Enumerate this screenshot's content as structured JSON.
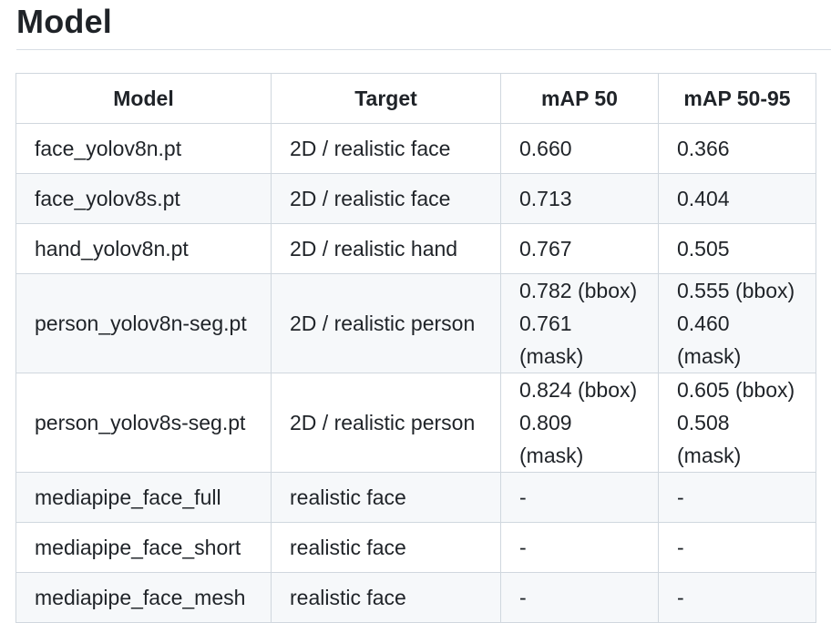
{
  "heading": "Model",
  "table": {
    "headers": [
      "Model",
      "Target",
      "mAP 50",
      "mAP 50-95"
    ],
    "rows": [
      {
        "model": "face_yolov8n.pt",
        "target": "2D / realistic face",
        "map50": [
          "0.660"
        ],
        "map5095": [
          "0.366"
        ]
      },
      {
        "model": "face_yolov8s.pt",
        "target": "2D / realistic face",
        "map50": [
          "0.713"
        ],
        "map5095": [
          "0.404"
        ]
      },
      {
        "model": "hand_yolov8n.pt",
        "target": "2D / realistic hand",
        "map50": [
          "0.767"
        ],
        "map5095": [
          "0.505"
        ]
      },
      {
        "model": "person_yolov8n-seg.pt",
        "target": "2D / realistic person",
        "map50": [
          "0.782 (bbox)",
          "0.761 (mask)"
        ],
        "map5095": [
          "0.555 (bbox)",
          "0.460 (mask)"
        ]
      },
      {
        "model": "person_yolov8s-seg.pt",
        "target": "2D / realistic person",
        "map50": [
          "0.824 (bbox)",
          "0.809 (mask)"
        ],
        "map5095": [
          "0.605 (bbox)",
          "0.508 (mask)"
        ]
      },
      {
        "model": "mediapipe_face_full",
        "target": "realistic face",
        "map50": [
          "-"
        ],
        "map5095": [
          "-"
        ]
      },
      {
        "model": "mediapipe_face_short",
        "target": "realistic face",
        "map50": [
          "-"
        ],
        "map5095": [
          "-"
        ]
      },
      {
        "model": "mediapipe_face_mesh",
        "target": "realistic face",
        "map50": [
          "-"
        ],
        "map5095": [
          "-"
        ]
      }
    ]
  }
}
